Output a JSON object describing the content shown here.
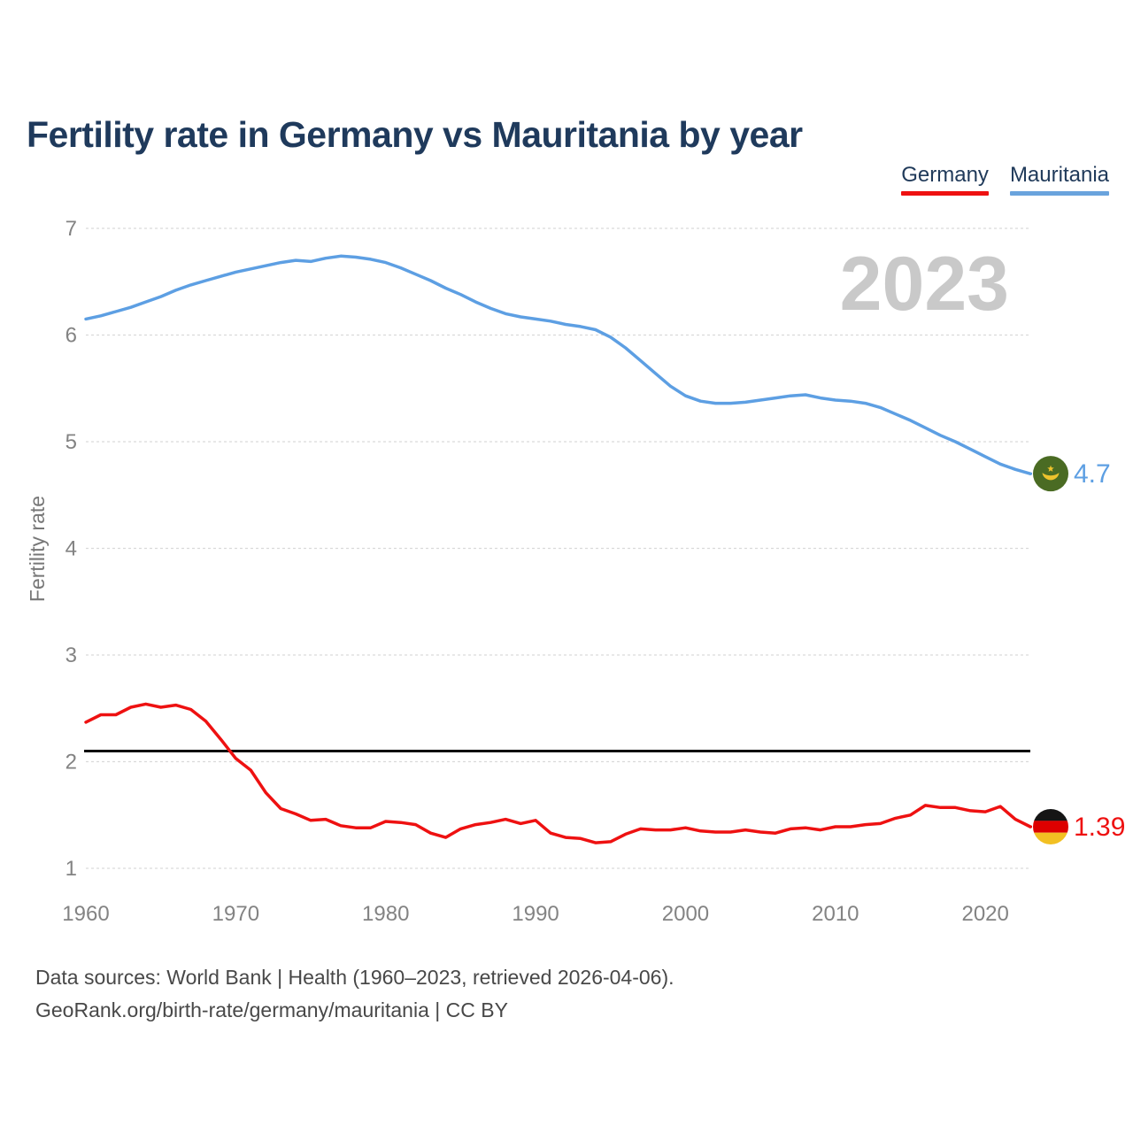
{
  "page": {
    "title": "Fertility rate in Germany vs Mauritania by year",
    "watermark_year": "2023",
    "footer_line1": "Data sources: World Bank | Health (1960–2023, retrieved 2026-04-06).",
    "footer_line2": "GeoRank.org/birth-rate/germany/mauritania | CC BY"
  },
  "legend": {
    "items": [
      {
        "label": "Germany",
        "color": "#ee1111"
      },
      {
        "label": "Mauritania",
        "color": "#69a3dd"
      }
    ]
  },
  "colors": {
    "title_text": "#1f3a5c",
    "axis_text": "#838383",
    "grid_line": "#d9d9d9",
    "reference_line": "#0a0a0a",
    "watermark": "#c9c9c9",
    "footer_text": "#484848",
    "germany_line": "#ee1111",
    "mauritania_line": "#5d9fe3"
  },
  "chart_data": {
    "type": "line",
    "title": "Fertility rate in Germany vs Mauritania by year",
    "xlabel": "",
    "ylabel": "Fertility rate",
    "ylim": [
      1,
      7
    ],
    "yticks": [
      1,
      2,
      3,
      4,
      5,
      6,
      7
    ],
    "xticks": [
      1960,
      1970,
      1980,
      1990,
      2000,
      2010,
      2020
    ],
    "grid": true,
    "legend_position": "top-right",
    "watermark": "2023",
    "reference_line": {
      "value": 2.1,
      "color": "#0a0a0a"
    },
    "x": [
      1960,
      1961,
      1962,
      1963,
      1964,
      1965,
      1966,
      1967,
      1968,
      1969,
      1970,
      1971,
      1972,
      1973,
      1974,
      1975,
      1976,
      1977,
      1978,
      1979,
      1980,
      1981,
      1982,
      1983,
      1984,
      1985,
      1986,
      1987,
      1988,
      1989,
      1990,
      1991,
      1992,
      1993,
      1994,
      1995,
      1996,
      1997,
      1998,
      1999,
      2000,
      2001,
      2002,
      2003,
      2004,
      2005,
      2006,
      2007,
      2008,
      2009,
      2010,
      2011,
      2012,
      2013,
      2014,
      2015,
      2016,
      2017,
      2018,
      2019,
      2020,
      2021,
      2022,
      2023
    ],
    "series": [
      {
        "name": "Germany",
        "color": "#ee1111",
        "flag": "germany",
        "end_label": "1.39",
        "end_value": 1.39,
        "values": [
          2.37,
          2.44,
          2.44,
          2.51,
          2.54,
          2.51,
          2.53,
          2.49,
          2.38,
          2.21,
          2.03,
          1.92,
          1.71,
          1.56,
          1.51,
          1.45,
          1.46,
          1.4,
          1.38,
          1.38,
          1.44,
          1.43,
          1.41,
          1.33,
          1.29,
          1.37,
          1.41,
          1.43,
          1.46,
          1.42,
          1.45,
          1.33,
          1.29,
          1.28,
          1.24,
          1.25,
          1.32,
          1.37,
          1.36,
          1.36,
          1.38,
          1.35,
          1.34,
          1.34,
          1.36,
          1.34,
          1.33,
          1.37,
          1.38,
          1.36,
          1.39,
          1.39,
          1.41,
          1.42,
          1.47,
          1.5,
          1.59,
          1.57,
          1.57,
          1.54,
          1.53,
          1.58,
          1.46,
          1.39
        ]
      },
      {
        "name": "Mauritania",
        "color": "#5d9fe3",
        "flag": "mauritania",
        "end_label": "4.7",
        "end_value": 4.7,
        "values": [
          6.15,
          6.18,
          6.22,
          6.26,
          6.31,
          6.36,
          6.42,
          6.47,
          6.51,
          6.55,
          6.59,
          6.62,
          6.65,
          6.68,
          6.7,
          6.69,
          6.72,
          6.74,
          6.73,
          6.71,
          6.68,
          6.63,
          6.57,
          6.51,
          6.44,
          6.38,
          6.31,
          6.25,
          6.2,
          6.17,
          6.15,
          6.13,
          6.1,
          6.08,
          6.05,
          5.98,
          5.88,
          5.76,
          5.64,
          5.52,
          5.43,
          5.38,
          5.36,
          5.36,
          5.37,
          5.39,
          5.41,
          5.43,
          5.44,
          5.41,
          5.39,
          5.38,
          5.36,
          5.32,
          5.26,
          5.2,
          5.13,
          5.06,
          5.0,
          4.93,
          4.86,
          4.79,
          4.74,
          4.7
        ]
      }
    ]
  }
}
